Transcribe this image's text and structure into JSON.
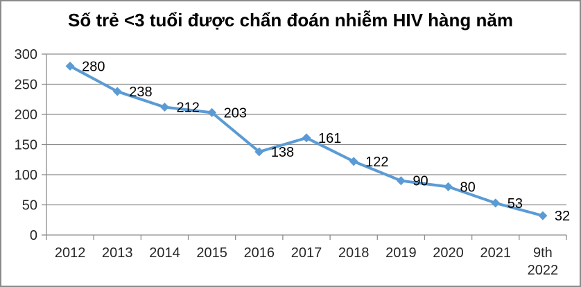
{
  "chart_data": {
    "type": "line",
    "title": "Số trẻ <3 tuổi được chẩn đoán nhiễm HIV hàng năm",
    "categories": [
      "2012",
      "2013",
      "2014",
      "2015",
      "2016",
      "2017",
      "2018",
      "2019",
      "2020",
      "2021",
      "9th\n2022"
    ],
    "values": [
      280,
      238,
      212,
      203,
      138,
      161,
      122,
      90,
      80,
      53,
      32
    ],
    "data_labels": [
      "280",
      "238",
      "212",
      "203",
      "138",
      "161",
      "122",
      "90",
      "80",
      "53",
      "32"
    ],
    "xlabel": "",
    "ylabel": "",
    "ylim": [
      0,
      300
    ],
    "y_step": 50,
    "y_tick_labels": [
      "0",
      "50",
      "100",
      "150",
      "200",
      "250",
      "300"
    ],
    "grid": true,
    "legend": "none",
    "marker_shape": "diamond",
    "colors": {
      "line": "#5b9bd5",
      "marker": "#5b9bd5",
      "gridline": "#8c8c8c",
      "axis": "#8c8c8c",
      "text": "#262626",
      "title_text": "#000000",
      "frame_border": "#8a8a8a",
      "background": "#ffffff"
    }
  }
}
